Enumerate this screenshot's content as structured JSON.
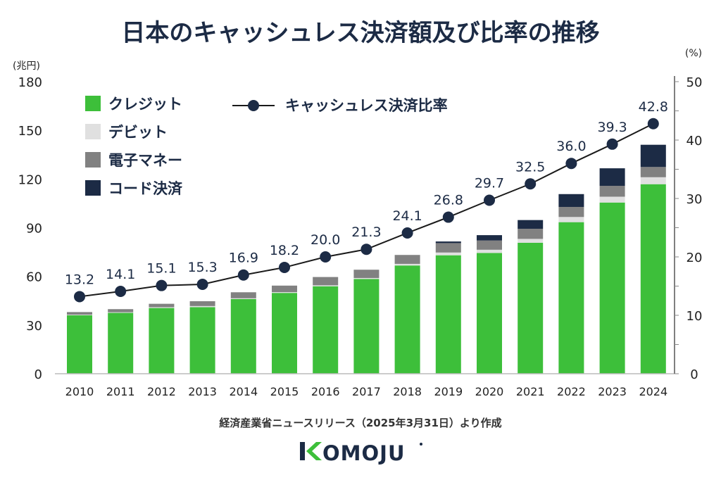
{
  "chart_data": {
    "type": "bar",
    "title": "日本のキャッシュレス決済額及び比率の推移",
    "left_unit": "(兆円)",
    "right_unit": "(%)",
    "ylim_left": [
      0,
      180
    ],
    "yticks_left": [
      0,
      30,
      60,
      90,
      120,
      150,
      180
    ],
    "ylim_right": [
      0,
      50
    ],
    "yticks_right": [
      0,
      10,
      20,
      30,
      40,
      50
    ],
    "stacked": true,
    "categories": [
      "2010",
      "2011",
      "2012",
      "2013",
      "2014",
      "2015",
      "2016",
      "2017",
      "2018",
      "2019",
      "2020",
      "2021",
      "2022",
      "2023",
      "2024"
    ],
    "series": [
      {
        "name": "クレジット",
        "color": "#3dbf3a",
        "values": [
          36.0,
          37.5,
          40.5,
          41.0,
          46.0,
          49.8,
          53.9,
          58.4,
          66.7,
          73.0,
          74.4,
          80.7,
          93.4,
          105.5,
          116.8
        ]
      },
      {
        "name": "デビット",
        "color": "#e0e0e0",
        "values": [
          0.4,
          0.4,
          0.5,
          0.7,
          0.5,
          0.5,
          0.6,
          0.6,
          1.0,
          1.7,
          2.0,
          2.4,
          3.2,
          3.6,
          4.3
        ]
      },
      {
        "name": "電子マネー",
        "color": "#818181",
        "values": [
          1.6,
          1.9,
          2.1,
          3.0,
          3.7,
          4.0,
          5.1,
          5.1,
          5.5,
          5.8,
          5.7,
          6.2,
          6.2,
          6.7,
          6.3
        ]
      },
      {
        "name": "コード決済",
        "color": "#1c2b45",
        "values": [
          0,
          0,
          0,
          0,
          0,
          0,
          0,
          0,
          0,
          1.0,
          3.3,
          5.4,
          7.9,
          10.8,
          13.7
        ]
      }
    ],
    "line_series": {
      "name": "キャッシュレス決済比率",
      "axis": "right",
      "color": "#1a1a1a",
      "marker_color": "#1c2b45",
      "values": [
        13.2,
        14.1,
        15.1,
        15.3,
        16.9,
        18.2,
        20.0,
        21.3,
        24.1,
        26.8,
        29.7,
        32.5,
        36.0,
        39.3,
        42.8
      ],
      "labels": [
        "13.2",
        "14.1",
        "15.1",
        "15.3",
        "16.9",
        "18.2",
        "20.0",
        "21.3",
        "24.1",
        "26.8",
        "29.7",
        "32.5",
        "36.0",
        "39.3",
        "42.8"
      ]
    },
    "legend_placement": "top-left",
    "grid": false
  },
  "source": "経済産業省ニュースリリース（2025年3月31日）より作成",
  "logo": {
    "text": "KOMOJU",
    "color": "#1c2b45",
    "accent": "#3dbf3a"
  }
}
